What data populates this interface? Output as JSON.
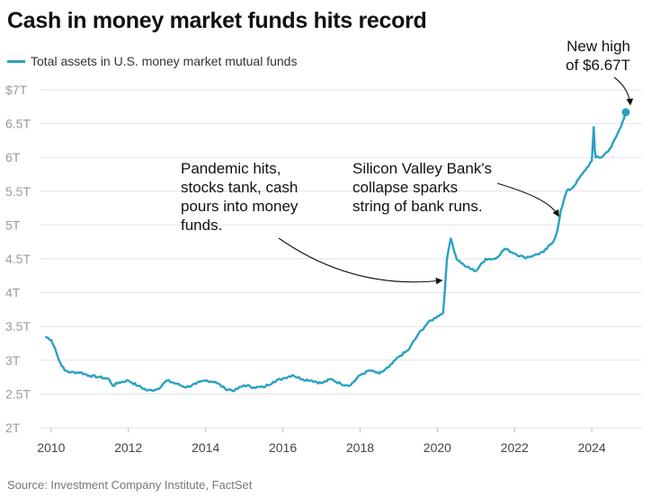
{
  "header": {
    "title": "Cash in money market funds hits record"
  },
  "legend": {
    "label": "Total assets in U.S. money market mutual funds"
  },
  "footer": {
    "source": "Source: Investment Company Institute, FactSet"
  },
  "colors": {
    "series": "#2aa0c4",
    "grid": "#e3e3e3",
    "annotation_arrow": "#111111"
  },
  "chart_data": {
    "type": "line",
    "title": "Cash in money market funds hits record",
    "xlabel": "",
    "ylabel": "",
    "xlim": [
      2009.7,
      2025.3
    ],
    "ylim": [
      2,
      7
    ],
    "grid": true,
    "legend_position": "top-left",
    "y_ticks": [
      {
        "value": 2,
        "label": "2T"
      },
      {
        "value": 2.5,
        "label": "2.5T"
      },
      {
        "value": 3,
        "label": "3T"
      },
      {
        "value": 3.5,
        "label": "3.5T"
      },
      {
        "value": 4,
        "label": "4T"
      },
      {
        "value": 4.5,
        "label": "4.5T"
      },
      {
        "value": 5,
        "label": "5T"
      },
      {
        "value": 5.5,
        "label": "5.5T"
      },
      {
        "value": 6,
        "label": "6T"
      },
      {
        "value": 6.5,
        "label": "6.5T"
      },
      {
        "value": 7,
        "label": "$7T"
      }
    ],
    "x_ticks": [
      {
        "value": 2010,
        "label": "2010"
      },
      {
        "value": 2012,
        "label": "2012"
      },
      {
        "value": 2014,
        "label": "2014"
      },
      {
        "value": 2016,
        "label": "2016"
      },
      {
        "value": 2018,
        "label": "2018"
      },
      {
        "value": 2020,
        "label": "2020"
      },
      {
        "value": 2022,
        "label": "2022"
      },
      {
        "value": 2024,
        "label": "2024"
      }
    ],
    "series": [
      {
        "name": "Total assets in U.S. money market mutual funds",
        "x": [
          2009.85,
          2010.0,
          2010.1,
          2010.2,
          2010.35,
          2010.5,
          2010.75,
          2011.0,
          2011.25,
          2011.5,
          2011.6,
          2011.75,
          2012.0,
          2012.25,
          2012.5,
          2012.75,
          2013.0,
          2013.25,
          2013.5,
          2013.75,
          2014.0,
          2014.25,
          2014.5,
          2014.75,
          2015.0,
          2015.25,
          2015.5,
          2015.75,
          2016.0,
          2016.25,
          2016.5,
          2016.75,
          2017.0,
          2017.25,
          2017.5,
          2017.75,
          2018.0,
          2018.25,
          2018.5,
          2018.75,
          2019.0,
          2019.25,
          2019.5,
          2019.75,
          2020.0,
          2020.15,
          2020.25,
          2020.35,
          2020.5,
          2020.75,
          2021.0,
          2021.25,
          2021.5,
          2021.75,
          2022.0,
          2022.25,
          2022.5,
          2022.75,
          2023.0,
          2023.1,
          2023.2,
          2023.35,
          2023.5,
          2023.75,
          2024.0,
          2024.05,
          2024.08,
          2024.1,
          2024.25,
          2024.5,
          2024.75,
          2024.88
        ],
        "values": [
          3.35,
          3.3,
          3.18,
          3.0,
          2.85,
          2.82,
          2.82,
          2.77,
          2.75,
          2.72,
          2.62,
          2.67,
          2.7,
          2.62,
          2.55,
          2.57,
          2.7,
          2.65,
          2.6,
          2.65,
          2.7,
          2.68,
          2.58,
          2.55,
          2.63,
          2.6,
          2.6,
          2.68,
          2.73,
          2.78,
          2.72,
          2.7,
          2.66,
          2.72,
          2.65,
          2.63,
          2.78,
          2.85,
          2.8,
          2.9,
          3.05,
          3.15,
          3.38,
          3.55,
          3.65,
          3.7,
          4.5,
          4.8,
          4.5,
          4.38,
          4.32,
          4.5,
          4.5,
          4.65,
          4.58,
          4.52,
          4.55,
          4.6,
          4.75,
          4.9,
          5.22,
          5.5,
          5.55,
          5.75,
          5.95,
          6.45,
          6.1,
          6.0,
          6.0,
          6.15,
          6.45,
          6.67
        ]
      }
    ],
    "annotations": [
      {
        "lines": [
          "Pandemic hits,",
          "stocks tank, cash",
          "pours into money",
          "funds."
        ]
      },
      {
        "lines": [
          "Silicon Valley Bank's",
          "collapse sparks",
          "string of bank runs."
        ]
      },
      {
        "lines": [
          "New high",
          "of $6.67T"
        ]
      }
    ]
  }
}
